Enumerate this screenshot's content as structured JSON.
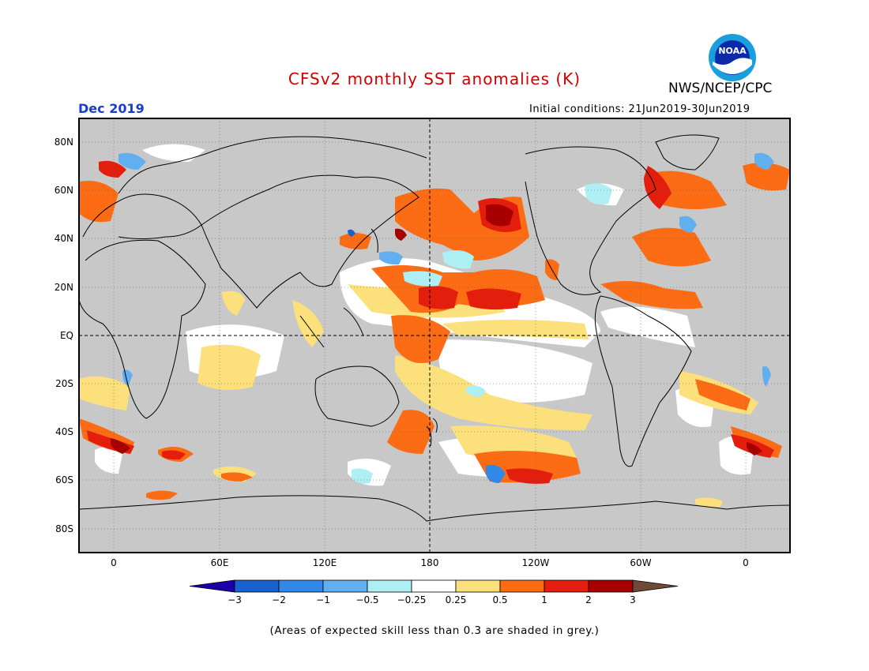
{
  "header": {
    "title": "CFSv2 monthly SST anomalies (K)",
    "agency": "NWS/NCEP/CPC",
    "logo_text": "NOAA",
    "month": "Dec 2019",
    "initial_conditions": "Initial conditions: 21Jun2019-30Jun2019"
  },
  "map": {
    "lat_labels": [
      "80N",
      "60N",
      "40N",
      "20N",
      "EQ",
      "20S",
      "40S",
      "60S",
      "80S"
    ],
    "lon_labels": [
      "0",
      "60E",
      "120E",
      "180",
      "120W",
      "60W",
      "0"
    ]
  },
  "legend": {
    "units": "K",
    "bins": [
      {
        "color": "#1b00aa"
      },
      {
        "color": "#1961cf"
      },
      {
        "color": "#3188e6"
      },
      {
        "color": "#62aff0"
      },
      {
        "color": "#aeeff4"
      },
      {
        "color": "#ffffff"
      },
      {
        "color": "#fbe07b"
      },
      {
        "color": "#fb6c14"
      },
      {
        "color": "#e41e0c"
      },
      {
        "color": "#a80000"
      },
      {
        "color": "#6e4a37"
      }
    ],
    "tick_labels": [
      "−3",
      "−2",
      "−1",
      "−0.5",
      "−0.25",
      "0.25",
      "0.5",
      "1",
      "2",
      "3"
    ]
  },
  "colors": {
    "title": "#d00000",
    "month": "#1a3ccc",
    "land_grey": "#c8c8c8",
    "low_skill_grey": "#c0c0c0"
  },
  "footnote": "(Areas of expected skill less than 0.3 are shaded in grey.)"
}
